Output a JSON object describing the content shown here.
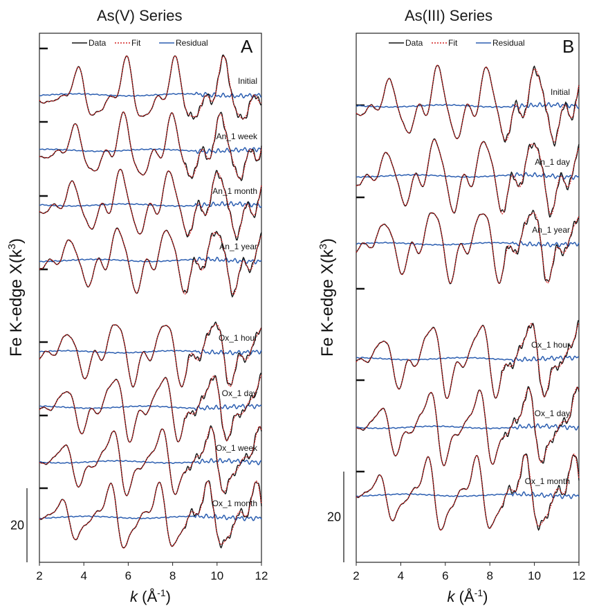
{
  "chart_data": [
    {
      "type": "line",
      "title": "As(V) Series",
      "panel_letter": "A",
      "xlabel_italic": "k",
      "xlabel_unit_base": "(Å",
      "xlabel_unit_sup": "-1",
      "xlabel_unit_close": ")",
      "ylabel_base": "Fe K-edge X(k",
      "ylabel_sup": "3",
      "ylabel_close": ")",
      "xlim": [
        2,
        12
      ],
      "xticks": [
        "2",
        "4",
        "6",
        "8",
        "10",
        "12"
      ],
      "legend": [
        "Data",
        "Fit",
        "Residual"
      ],
      "legend_placement": "top-center",
      "scale_bar_label": "20",
      "series_colors": {
        "data": "#111111",
        "fit": "#d42020",
        "residual": "#2a5db0"
      },
      "spectra": [
        {
          "label": "Initial"
        },
        {
          "label": "An_1 week"
        },
        {
          "label": "An_1 month"
        },
        {
          "label": "An_1 year"
        },
        {
          "label": "Ox_1 hour"
        },
        {
          "label": "Ox_1 day"
        },
        {
          "label": "Ox_1 week"
        },
        {
          "label": "Ox_1 month"
        }
      ]
    },
    {
      "type": "line",
      "title": "As(III) Series",
      "panel_letter": "B",
      "xlabel_italic": "k",
      "xlabel_unit_base": "(Å",
      "xlabel_unit_sup": "-1",
      "xlabel_unit_close": ")",
      "ylabel_base": "Fe K-edge X(k",
      "ylabel_sup": "3",
      "ylabel_close": ")",
      "xlim": [
        2,
        12
      ],
      "xticks": [
        "2",
        "4",
        "6",
        "8",
        "10",
        "12"
      ],
      "legend": [
        "Data",
        "Fit",
        "Residual"
      ],
      "legend_placement": "top-center",
      "scale_bar_label": "20",
      "series_colors": {
        "data": "#111111",
        "fit": "#d42020",
        "residual": "#2a5db0"
      },
      "spectra": [
        {
          "label": "Initial"
        },
        {
          "label": "An_1 day"
        },
        {
          "label": "An_1 year"
        },
        {
          "label": "Ox_1 hour"
        },
        {
          "label": "Ox_1 day"
        },
        {
          "label": "Ox_1 month"
        }
      ]
    }
  ]
}
